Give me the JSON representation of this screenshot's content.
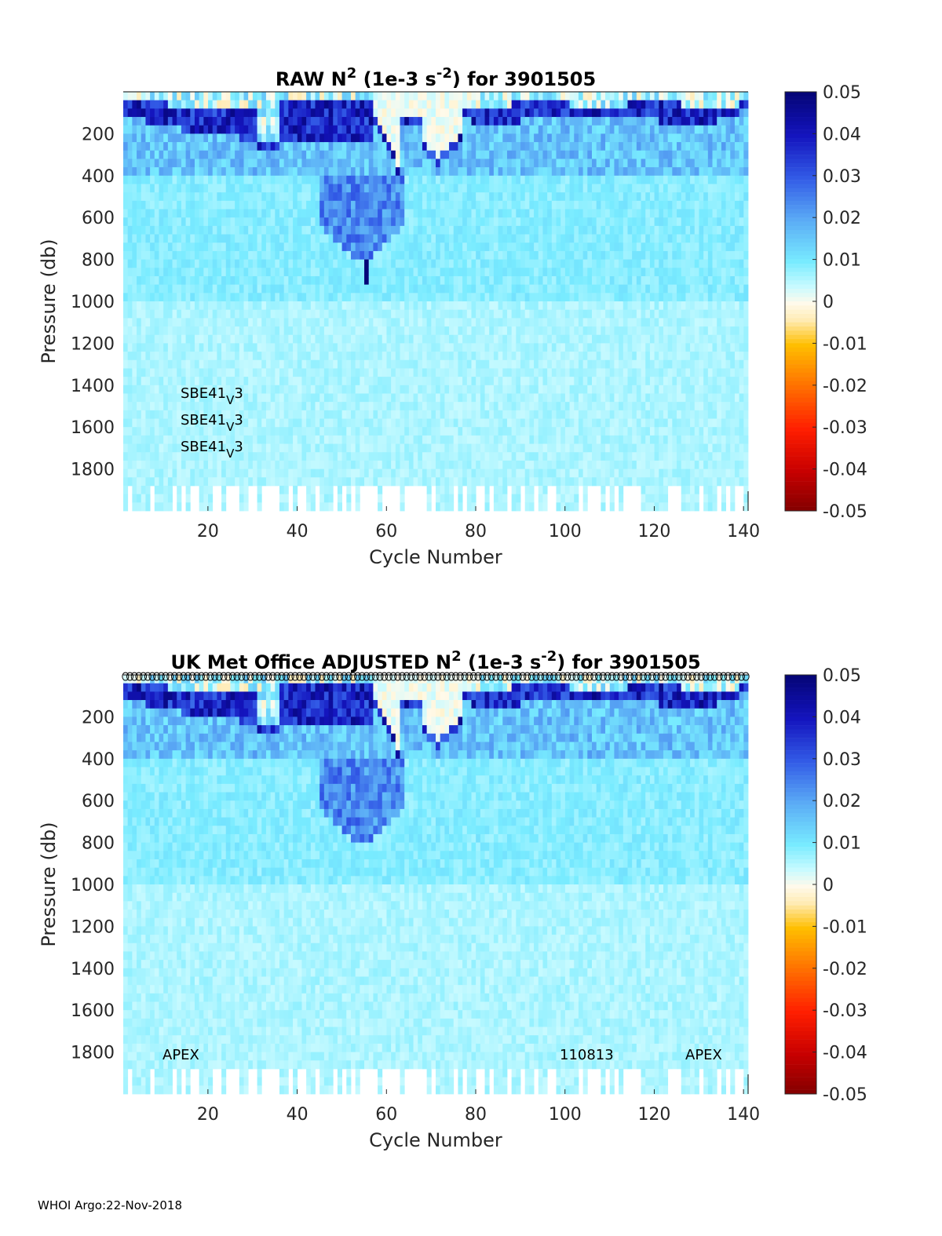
{
  "footer": "WHOI Argo:22-Nov-2018",
  "chart_data": [
    {
      "type": "heatmap",
      "title_parts": [
        "RAW N",
        "2",
        " (1e-3 s",
        "-2",
        ") for 3901505"
      ],
      "xlabel": "Cycle Number",
      "ylabel": "Pressure (db)",
      "xlim": [
        1,
        140
      ],
      "ylim": [
        0,
        2000
      ],
      "y_reversed": true,
      "xticks": [
        20,
        40,
        60,
        80,
        100,
        120,
        140
      ],
      "yticks": [
        200,
        400,
        600,
        800,
        1000,
        1200,
        1400,
        1600,
        1800
      ],
      "colorbar": {
        "ticks": [
          "0.05",
          "0.04",
          "0.03",
          "0.02",
          "0.01",
          "0",
          "-0.01",
          "-0.02",
          "-0.03",
          "-0.04",
          "-0.05"
        ],
        "clim": [
          -0.05,
          0.05
        ]
      },
      "annotations": [
        {
          "base": "SBE41",
          "sub": "V",
          "tail": "3"
        },
        {
          "base": "SBE41",
          "sub": "V",
          "tail": "3"
        },
        {
          "base": "SBE41",
          "sub": "V",
          "tail": "3"
        }
      ],
      "features": {
        "deep_spike_cycle": 55,
        "deep_spike_depth": [
          800,
          900
        ]
      }
    },
    {
      "type": "heatmap",
      "title_parts": [
        "UK Met Office  ADJUSTED N",
        "2",
        " (1e-3 s",
        "-2",
        ") for 3901505"
      ],
      "xlabel": "Cycle Number",
      "ylabel": "Pressure (db)",
      "xlim": [
        1,
        140
      ],
      "ylim": [
        0,
        2000
      ],
      "y_reversed": true,
      "xticks": [
        20,
        40,
        60,
        80,
        100,
        120,
        140
      ],
      "yticks": [
        200,
        400,
        600,
        800,
        1000,
        1200,
        1400,
        1600,
        1800
      ],
      "colorbar": {
        "ticks": [
          "0.05",
          "0.04",
          "0.03",
          "0.02",
          "0.01",
          "0",
          "-0.01",
          "-0.02",
          "-0.03",
          "-0.04",
          "-0.05"
        ],
        "clim": [
          -0.05,
          0.05
        ]
      },
      "qc_markers": "circles along top for every cycle",
      "labels": {
        "left": "APEX",
        "mid": "110813",
        "right": "APEX"
      }
    }
  ]
}
